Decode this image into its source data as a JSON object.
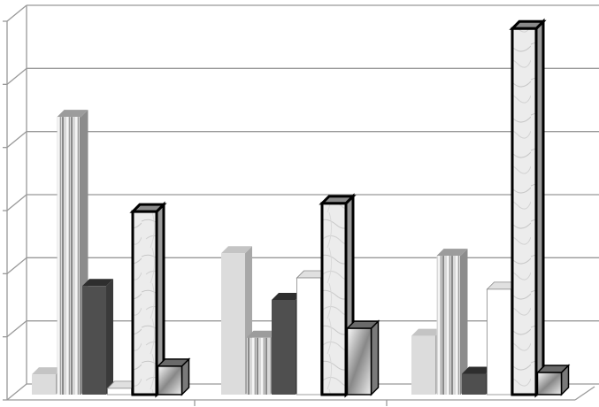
{
  "chart_data": {
    "type": "bar",
    "style": "3d-clustered-column",
    "grid": true,
    "ylim": [
      0,
      6
    ],
    "categories": [
      "",
      "",
      ""
    ],
    "series": [
      {
        "values": [
          0.32,
          2.24,
          0.93
        ],
        "fill": "#dcdcdc"
      },
      {
        "values": [
          4.4,
          0.9,
          2.2
        ],
        "fill": "vertical-stripes"
      },
      {
        "values": [
          1.72,
          1.5,
          0.33
        ],
        "fill": "#4f4f4f"
      },
      {
        "values": [
          0.1,
          1.85,
          1.67
        ],
        "fill": "#ffffff"
      },
      {
        "values": [
          2.9,
          3.03,
          5.8
        ],
        "fill": "marble"
      },
      {
        "values": [
          0.45,
          1.05,
          0.35
        ],
        "fill": "gradient-squares"
      }
    ]
  }
}
